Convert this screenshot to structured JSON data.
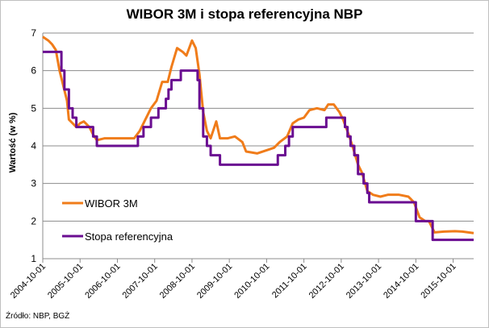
{
  "chart_data": {
    "type": "line",
    "title": "WIBOR 3M i stopa referencyjna NBP",
    "xlabel": "",
    "ylabel": "Wartość (w %)",
    "ylim": [
      1,
      7
    ],
    "yticks": [
      1,
      2,
      3,
      4,
      5,
      6,
      7
    ],
    "xlim": [
      2004.75,
      2016.3
    ],
    "xtick_labels": [
      "2004-10-01",
      "2005-10-01",
      "2006-10-01",
      "2007-10-01",
      "2008-10-01",
      "2009-10-01",
      "2010-10-01",
      "2011-10-01",
      "2012-10-01",
      "2013-10-01",
      "2014-10-01",
      "2015-10-01"
    ],
    "grid": "horizontal",
    "legend_position": "lower-left",
    "source": "Źródło: NBP, BGŻ",
    "series": [
      {
        "name": "WIBOR 3M",
        "color": "#f07c1a",
        "step": false,
        "points": [
          [
            2004.75,
            6.9
          ],
          [
            2004.9,
            6.8
          ],
          [
            2005.0,
            6.7
          ],
          [
            2005.1,
            6.55
          ],
          [
            2005.2,
            6.0
          ],
          [
            2005.3,
            5.6
          ],
          [
            2005.4,
            5.2
          ],
          [
            2005.45,
            4.7
          ],
          [
            2005.55,
            4.6
          ],
          [
            2005.65,
            4.5
          ],
          [
            2005.75,
            4.6
          ],
          [
            2005.85,
            4.65
          ],
          [
            2006.0,
            4.5
          ],
          [
            2006.1,
            4.3
          ],
          [
            2006.2,
            4.15
          ],
          [
            2006.4,
            4.2
          ],
          [
            2006.6,
            4.2
          ],
          [
            2006.8,
            4.2
          ],
          [
            2007.0,
            4.2
          ],
          [
            2007.2,
            4.2
          ],
          [
            2007.35,
            4.4
          ],
          [
            2007.5,
            4.7
          ],
          [
            2007.65,
            5.0
          ],
          [
            2007.8,
            5.2
          ],
          [
            2007.95,
            5.7
          ],
          [
            2008.1,
            5.7
          ],
          [
            2008.2,
            6.1
          ],
          [
            2008.35,
            6.6
          ],
          [
            2008.5,
            6.5
          ],
          [
            2008.6,
            6.4
          ],
          [
            2008.75,
            6.8
          ],
          [
            2008.85,
            6.6
          ],
          [
            2008.95,
            5.9
          ],
          [
            2009.05,
            4.9
          ],
          [
            2009.15,
            4.4
          ],
          [
            2009.25,
            4.2
          ],
          [
            2009.4,
            4.65
          ],
          [
            2009.5,
            4.2
          ],
          [
            2009.7,
            4.2
          ],
          [
            2009.9,
            4.25
          ],
          [
            2010.1,
            4.1
          ],
          [
            2010.2,
            3.85
          ],
          [
            2010.5,
            3.8
          ],
          [
            2010.8,
            3.9
          ],
          [
            2010.95,
            3.95
          ],
          [
            2011.1,
            4.1
          ],
          [
            2011.3,
            4.25
          ],
          [
            2011.45,
            4.6
          ],
          [
            2011.6,
            4.7
          ],
          [
            2011.75,
            4.75
          ],
          [
            2011.9,
            4.95
          ],
          [
            2012.1,
            5.0
          ],
          [
            2012.3,
            4.95
          ],
          [
            2012.4,
            5.1
          ],
          [
            2012.55,
            5.1
          ],
          [
            2012.7,
            4.9
          ],
          [
            2012.8,
            4.7
          ],
          [
            2012.95,
            4.3
          ],
          [
            2013.05,
            4.0
          ],
          [
            2013.2,
            3.5
          ],
          [
            2013.3,
            3.3
          ],
          [
            2013.45,
            2.8
          ],
          [
            2013.6,
            2.7
          ],
          [
            2013.8,
            2.65
          ],
          [
            2014.0,
            2.7
          ],
          [
            2014.3,
            2.7
          ],
          [
            2014.55,
            2.65
          ],
          [
            2014.7,
            2.5
          ],
          [
            2014.85,
            2.1
          ],
          [
            2015.0,
            2.0
          ],
          [
            2015.1,
            2.0
          ],
          [
            2015.25,
            1.7
          ],
          [
            2015.5,
            1.72
          ],
          [
            2015.8,
            1.73
          ],
          [
            2016.0,
            1.72
          ],
          [
            2016.3,
            1.68
          ]
        ]
      },
      {
        "name": "Stopa referencyjna",
        "color": "#6a0d91",
        "step": true,
        "points": [
          [
            2004.75,
            6.5
          ],
          [
            2005.25,
            6.0
          ],
          [
            2005.33,
            5.5
          ],
          [
            2005.45,
            5.0
          ],
          [
            2005.55,
            4.75
          ],
          [
            2005.65,
            4.5
          ],
          [
            2006.1,
            4.25
          ],
          [
            2006.2,
            4.0
          ],
          [
            2007.3,
            4.25
          ],
          [
            2007.45,
            4.5
          ],
          [
            2007.65,
            4.75
          ],
          [
            2007.85,
            5.0
          ],
          [
            2008.05,
            5.25
          ],
          [
            2008.12,
            5.5
          ],
          [
            2008.2,
            5.75
          ],
          [
            2008.45,
            6.0
          ],
          [
            2008.9,
            5.75
          ],
          [
            2008.95,
            5.0
          ],
          [
            2009.05,
            4.25
          ],
          [
            2009.15,
            4.0
          ],
          [
            2009.25,
            3.75
          ],
          [
            2009.5,
            3.5
          ],
          [
            2011.05,
            3.75
          ],
          [
            2011.25,
            4.0
          ],
          [
            2011.35,
            4.25
          ],
          [
            2011.45,
            4.5
          ],
          [
            2012.35,
            4.75
          ],
          [
            2012.85,
            4.5
          ],
          [
            2012.92,
            4.25
          ],
          [
            2013.0,
            4.0
          ],
          [
            2013.1,
            3.75
          ],
          [
            2013.2,
            3.25
          ],
          [
            2013.35,
            3.0
          ],
          [
            2013.45,
            2.75
          ],
          [
            2013.5,
            2.5
          ],
          [
            2014.75,
            2.0
          ],
          [
            2015.2,
            1.5
          ],
          [
            2016.3,
            1.5
          ]
        ]
      }
    ]
  }
}
